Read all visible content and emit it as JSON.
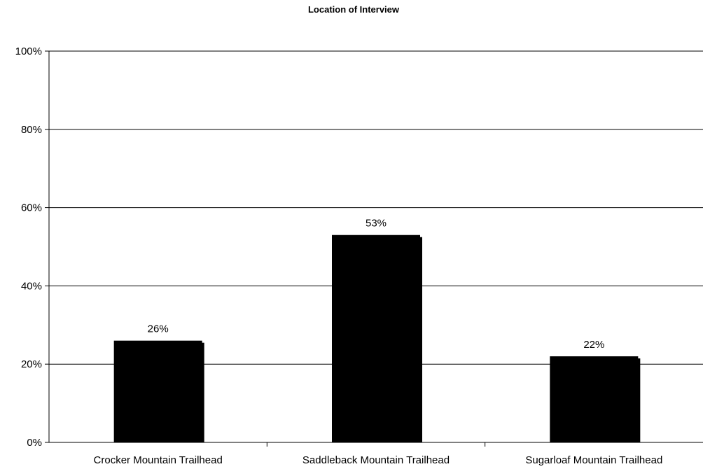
{
  "chart_data": {
    "type": "bar",
    "title": "Location of Interview",
    "xlabel": "",
    "ylabel": "",
    "categories": [
      "Crocker Mountain Trailhead",
      "Saddleback Mountain Trailhead",
      "Sugarloaf Mountain Trailhead"
    ],
    "values": [
      26,
      53,
      22
    ],
    "value_labels": [
      "26%",
      "53%",
      "22%"
    ],
    "ylim": [
      0,
      100
    ],
    "yticks": [
      0,
      20,
      40,
      60,
      80,
      100
    ],
    "ytick_labels": [
      "0%",
      "20%",
      "40%",
      "60%",
      "80%",
      "100%"
    ],
    "grid": true,
    "legend": "none",
    "bar_color": "#000000"
  }
}
